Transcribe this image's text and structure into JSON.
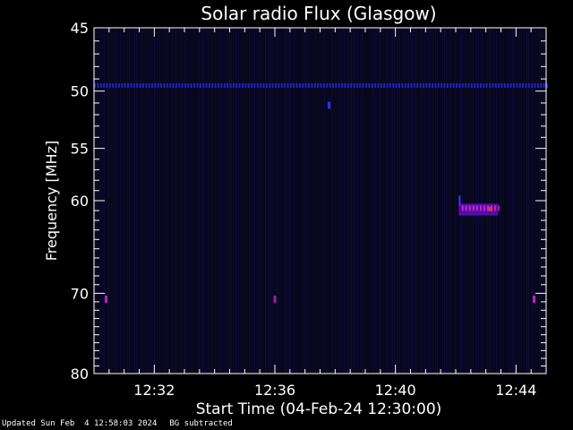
{
  "chart_data": {
    "type": "heatmap",
    "title": "Solar radio Flux (Glasgow)",
    "xlabel": "Start Time (04-Feb-24 12:30:00)",
    "ylabel": "Frequency [MHz]",
    "x_range_minutes": [
      0,
      15
    ],
    "y_range_mhz": [
      45,
      80
    ],
    "y_scale": "log",
    "x_ticks": [
      {
        "minute": 2,
        "label": "12:32"
      },
      {
        "minute": 6,
        "label": "12:36"
      },
      {
        "minute": 10,
        "label": "12:40"
      },
      {
        "minute": 14,
        "label": "12:44"
      }
    ],
    "y_ticks": [
      {
        "mhz": 45,
        "label": "45"
      },
      {
        "mhz": 50,
        "label": "50"
      },
      {
        "mhz": 55,
        "label": "55"
      },
      {
        "mhz": 60,
        "label": "60"
      },
      {
        "mhz": 70,
        "label": "70"
      },
      {
        "mhz": 80,
        "label": "80"
      }
    ],
    "y_minor_ticks_mhz": [
      46,
      47,
      48,
      49,
      51,
      52,
      53,
      54,
      56,
      57,
      58,
      59,
      61,
      62,
      63,
      64,
      65,
      66,
      67,
      68,
      69,
      71,
      72,
      73,
      74,
      75,
      76,
      77,
      78,
      79
    ],
    "x_minor_ticks_minute": [
      0.5,
      1,
      1.5,
      2.5,
      3,
      3.5,
      4,
      4.5,
      5,
      5.5,
      6.5,
      7,
      7.5,
      8,
      8.5,
      9,
      9.5,
      10.5,
      11,
      11.5,
      12,
      12.5,
      13,
      13.5,
      14.5
    ],
    "background_color": "#06061a",
    "features": [
      {
        "name": "interference-line",
        "freq_mhz": 49.5,
        "t_start": 0,
        "t_end": 15,
        "color": "#2020c8"
      },
      {
        "name": "burst",
        "t_start": 12.1,
        "t_end": 13.4,
        "freq_low": 60.3,
        "freq_high": 61.5,
        "color": "#6010c0",
        "peak_color": "#ff3030"
      },
      {
        "name": "spot",
        "minute": 0.4,
        "freq_mhz": 70.7,
        "color": "#c020c0"
      },
      {
        "name": "spot",
        "minute": 6.0,
        "freq_mhz": 70.7,
        "color": "#a020a0"
      },
      {
        "name": "spot",
        "minute": 14.6,
        "freq_mhz": 70.7,
        "color": "#c020c0"
      },
      {
        "name": "spot",
        "minute": 7.8,
        "freq_mhz": 51.2,
        "color": "#3030ff"
      }
    ]
  },
  "footer": {
    "updated": "Updated Sun Feb  4 12:58:03 2024",
    "mode": "BG subtracted"
  }
}
